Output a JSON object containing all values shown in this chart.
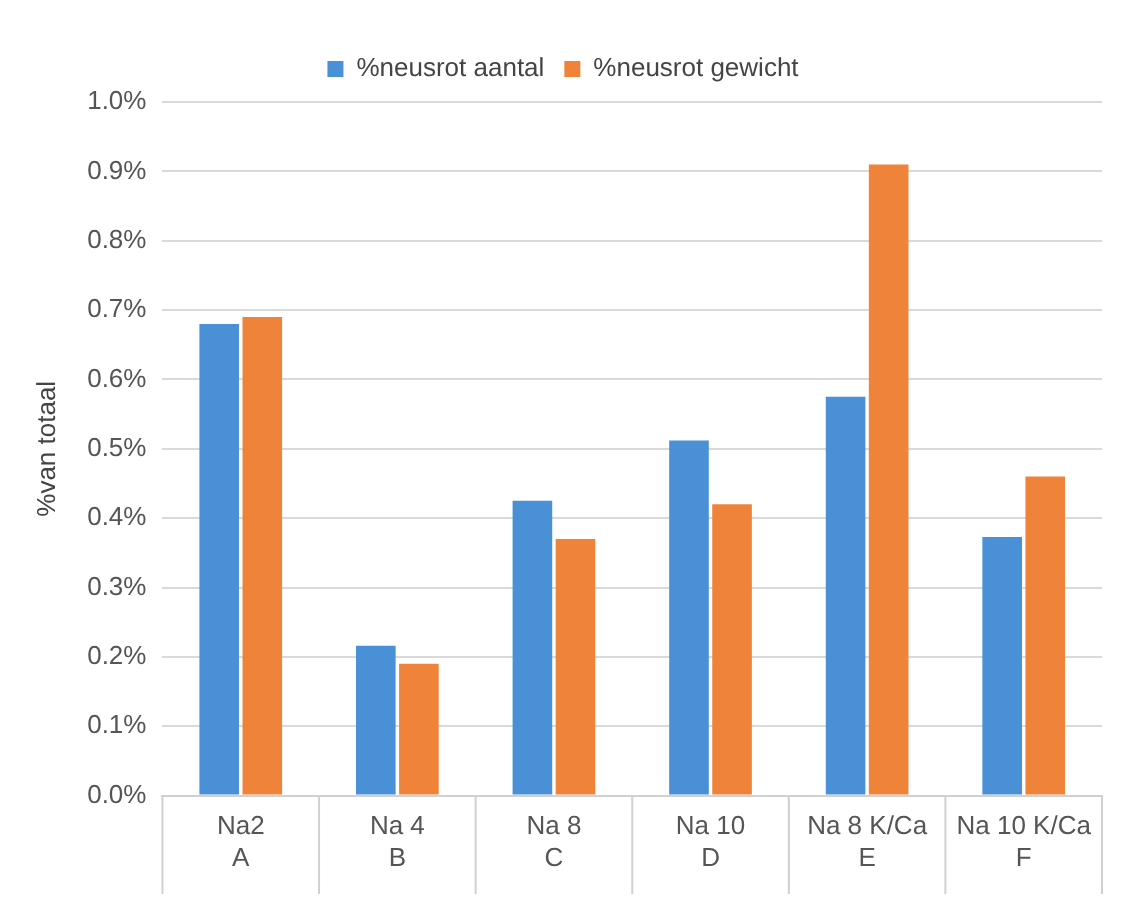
{
  "chart_data": {
    "type": "bar",
    "ylabel": "%van totaal",
    "categories": [
      "Na2\nA",
      "Na 4\nB",
      "Na 8\nC",
      "Na 10\nD",
      "Na 8 K/Ca\nE",
      "Na 10 K/Ca\nF"
    ],
    "series": [
      {
        "name": "%neusrot aantal",
        "color": "#4a90d6",
        "values": [
          0.68,
          0.216,
          0.425,
          0.512,
          0.575,
          0.373
        ]
      },
      {
        "name": "%neusrot gewicht",
        "color": "#f0833a",
        "values": [
          0.69,
          0.19,
          0.37,
          0.42,
          0.91,
          0.46
        ]
      }
    ],
    "ylim": [
      0,
      1
    ],
    "yticks": [
      {
        "value": 0,
        "label": "0.0%"
      },
      {
        "value": 0.1,
        "label": "0.1%"
      },
      {
        "value": 0.2,
        "label": "0.2%"
      },
      {
        "value": 0.3,
        "label": "0.3%"
      },
      {
        "value": 0.4,
        "label": "0.4%"
      },
      {
        "value": 0.5,
        "label": "0.5%"
      },
      {
        "value": 0.6,
        "label": "0.6%"
      },
      {
        "value": 0.7,
        "label": "0.7%"
      },
      {
        "value": 0.8,
        "label": "0.8%"
      },
      {
        "value": 0.9,
        "label": "0.9%"
      },
      {
        "value": 1,
        "label": "1.0%"
      }
    ],
    "grid": "y",
    "legend": "top"
  }
}
